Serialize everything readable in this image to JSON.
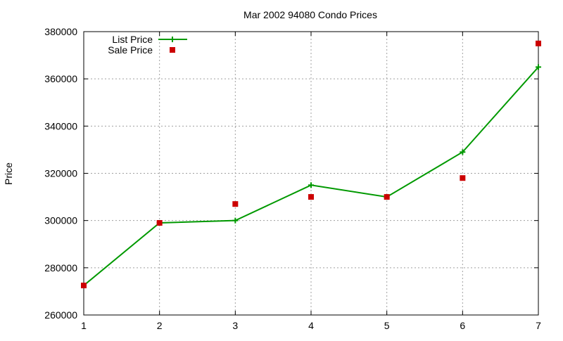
{
  "chart_data": {
    "type": "line",
    "title": "Mar 2002 94080 Condo Prices",
    "xlabel": "",
    "ylabel": "Price",
    "x": [
      1,
      2,
      3,
      4,
      5,
      6,
      7
    ],
    "xlim": [
      1,
      7
    ],
    "ylim": [
      260000,
      380000
    ],
    "x_ticks": [
      1,
      2,
      3,
      4,
      5,
      6,
      7
    ],
    "y_ticks": [
      260000,
      280000,
      300000,
      320000,
      340000,
      360000,
      380000
    ],
    "grid": true,
    "legend_position": "top-left",
    "series": [
      {
        "name": "List Price",
        "style": "line-points",
        "marker": "plus",
        "color": "#009900",
        "values": [
          272500,
          299000,
          300000,
          315000,
          310000,
          329000,
          365000
        ]
      },
      {
        "name": "Sale Price",
        "style": "points",
        "marker": "square",
        "color": "#cc0000",
        "values": [
          272500,
          299000,
          307000,
          310000,
          310000,
          318000,
          375000
        ]
      }
    ]
  }
}
